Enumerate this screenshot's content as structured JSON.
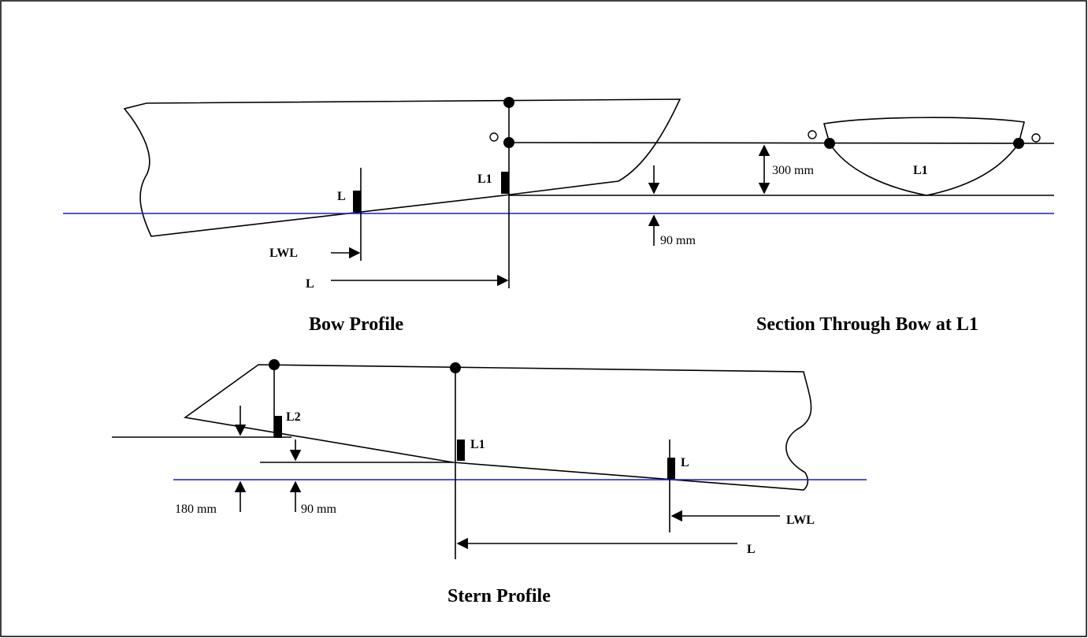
{
  "colors": {
    "line": "#000000",
    "waterline": "#1a1acd",
    "background": "#ffffff"
  },
  "bow_profile": {
    "caption": "Bow Profile",
    "mark_lwl": "L",
    "mark_l1": "L1",
    "arrow_lwl": "LWL",
    "arrow_l": "L",
    "dim_300": "300 mm",
    "dim_90": "90 mm"
  },
  "bow_section": {
    "caption": "Section Through Bow at L1",
    "mark_l1": "L1"
  },
  "stern_profile": {
    "caption": "Stern Profile",
    "mark_l2": "L2",
    "mark_l1": "L1",
    "mark_lwl": "L",
    "arrow_lwl": "LWL",
    "arrow_l": "L",
    "dim_180": "180 mm",
    "dim_90": "90 mm"
  }
}
